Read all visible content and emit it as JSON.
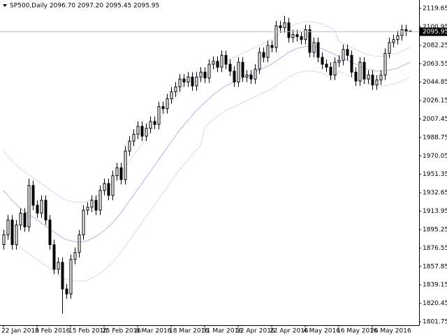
{
  "chart_data": {
    "type": "candlestick",
    "title": "SP500,Daily 2096.70 2097.20 2095.45 2095.95",
    "categories": [
      "22 Jan 2016",
      null,
      null,
      null,
      null,
      null,
      null,
      null,
      "3 Feb 2016",
      null,
      null,
      null,
      null,
      null,
      null,
      null,
      "15 Feb 2016",
      null,
      null,
      null,
      null,
      null,
      null,
      null,
      "25 Feb 2016",
      null,
      null,
      null,
      null,
      null,
      null,
      null,
      "8 Mar 2016",
      null,
      null,
      null,
      null,
      null,
      null,
      null,
      "18 Mar 2016",
      null,
      null,
      null,
      null,
      null,
      null,
      null,
      "31 Mar 2016",
      null,
      null,
      null,
      null,
      null,
      null,
      null,
      "12 Apr 2016",
      null,
      null,
      null,
      null,
      null,
      null,
      null,
      "22 Apr 2016",
      null,
      null,
      null,
      null,
      null,
      null,
      null,
      "4 May 2016",
      null,
      null,
      null,
      null,
      null,
      null,
      null,
      "16 May 2016",
      null,
      null,
      null,
      null,
      null,
      null,
      null,
      "26 May 2016",
      null,
      null,
      null,
      null,
      null,
      null,
      null,
      null,
      null
    ],
    "ohlc": {
      "open": [
        1880,
        1890,
        1905,
        1880,
        1900,
        1912,
        1898,
        1940,
        1920,
        1912,
        1925,
        1905,
        1880,
        1855,
        1862,
        1835,
        1830,
        1865,
        1872,
        1890,
        1915,
        1918,
        1925,
        1915,
        1935,
        1942,
        1930,
        1950,
        1958,
        1946,
        1975,
        1985,
        1992,
        2000,
        1990,
        1998,
        2005,
        2002,
        2020,
        2018,
        2028,
        2035,
        2040,
        2048,
        2045,
        2050,
        2041,
        2050,
        2055,
        2049,
        2063,
        2066,
        2060,
        2072,
        2063,
        2056,
        2045,
        2065,
        2050,
        2052,
        2048,
        2058,
        2075,
        2070,
        2082,
        2080,
        2102,
        2100,
        2105,
        2090,
        2093,
        2091,
        2088,
        2098,
        2075,
        2085,
        2070,
        2063,
        2060,
        2052,
        2065,
        2067,
        2078,
        2072,
        2055,
        2046,
        2065,
        2048,
        2052,
        2042,
        2047,
        2052,
        2074,
        2085,
        2088,
        2092,
        2098,
        2096.7
      ],
      "high": [
        1895,
        1910,
        1910,
        1905,
        1917,
        1917,
        1947,
        1945,
        1925,
        1930,
        1930,
        1910,
        1885,
        1867,
        1867,
        1840,
        1870,
        1877,
        1895,
        1920,
        1923,
        1930,
        1930,
        1940,
        1947,
        1947,
        1955,
        1963,
        1963,
        1980,
        1990,
        1997,
        2005,
        2005,
        2003,
        2010,
        2010,
        2025,
        2025,
        2033,
        2040,
        2045,
        2053,
        2053,
        2055,
        2055,
        2055,
        2060,
        2060,
        2068,
        2071,
        2071,
        2077,
        2077,
        2068,
        2061,
        2070,
        2070,
        2057,
        2057,
        2063,
        2080,
        2080,
        2087,
        2087,
        2107,
        2107,
        2112,
        2110,
        2098,
        2098,
        2096,
        2103,
        2103,
        2090,
        2090,
        2075,
        2068,
        2065,
        2070,
        2072,
        2083,
        2083,
        2077,
        2060,
        2070,
        2070,
        2057,
        2057,
        2052,
        2057,
        2079,
        2090,
        2093,
        2097,
        2103,
        2103,
        2097.2
      ],
      "low": [
        1875,
        1885,
        1875,
        1875,
        1895,
        1893,
        1893,
        1915,
        1907,
        1907,
        1900,
        1875,
        1850,
        1850,
        1810,
        1825,
        1825,
        1860,
        1867,
        1885,
        1910,
        1913,
        1910,
        1910,
        1930,
        1925,
        1925,
        1945,
        1941,
        1941,
        1970,
        1980,
        1987,
        1985,
        1985,
        1993,
        1997,
        1997,
        2013,
        2013,
        2023,
        2030,
        2035,
        2040,
        2040,
        2036,
        2036,
        2045,
        2044,
        2044,
        2058,
        2055,
        2055,
        2058,
        2051,
        2040,
        2040,
        2045,
        2045,
        2043,
        2043,
        2053,
        2065,
        2065,
        2075,
        2075,
        2095,
        2095,
        2085,
        2085,
        2086,
        2083,
        2083,
        2070,
        2070,
        2065,
        2058,
        2055,
        2047,
        2047,
        2060,
        2062,
        2067,
        2050,
        2041,
        2041,
        2043,
        2043,
        2037,
        2037,
        2042,
        2047,
        2069,
        2080,
        2083,
        2087,
        2091.7,
        2095.45
      ],
      "close": [
        1890,
        1905,
        1880,
        1900,
        1912,
        1898,
        1940,
        1920,
        1912,
        1925,
        1905,
        1880,
        1855,
        1862,
        1835,
        1830,
        1865,
        1872,
        1890,
        1915,
        1918,
        1925,
        1915,
        1935,
        1942,
        1930,
        1950,
        1958,
        1946,
        1975,
        1985,
        1992,
        2000,
        1990,
        1998,
        2005,
        2002,
        2020,
        2018,
        2028,
        2035,
        2040,
        2048,
        2045,
        2050,
        2041,
        2050,
        2055,
        2049,
        2063,
        2066,
        2060,
        2072,
        2063,
        2056,
        2045,
        2065,
        2050,
        2052,
        2048,
        2058,
        2075,
        2070,
        2082,
        2080,
        2102,
        2100,
        2105,
        2090,
        2093,
        2091,
        2088,
        2098,
        2075,
        2085,
        2070,
        2063,
        2060,
        2052,
        2065,
        2067,
        2078,
        2072,
        2055,
        2046,
        2065,
        2048,
        2052,
        2042,
        2047,
        2052,
        2074,
        2085,
        2088,
        2092,
        2098,
        2096.7,
        2095.95
      ]
    },
    "series": [
      {
        "color": "#d8d8f0",
        "values": [
          1975,
          1970,
          1965,
          1961,
          1957,
          1954,
          1951,
          1948,
          1945,
          1942,
          1939,
          1936,
          1933,
          1930,
          1927,
          1925,
          1924,
          1923,
          1923,
          1923,
          1924,
          1926,
          1928,
          1931,
          1934,
          1938,
          1942,
          1947,
          1952,
          1958,
          1964,
          1970,
          1976,
          1982,
          1988,
          1994,
          2000,
          2006,
          2012,
          2018,
          2024,
          2030,
          2036,
          2041,
          2046,
          2051,
          2056,
          2060,
          2049,
          2053,
          2057,
          2060,
          2063,
          2066,
          2068,
          2070,
          2072,
          2074,
          2076,
          2078,
          2080,
          2082,
          2084,
          2086,
          2088,
          2091,
          2094,
          2097,
          2100,
          2102,
          2104,
          2105,
          2106,
          2106,
          2106,
          2105,
          2104,
          2102,
          2100,
          2098,
          2086,
          2084,
          2082,
          2080,
          2078,
          2076,
          2074,
          2073,
          2072,
          2071,
          2071,
          2071,
          2072,
          2073,
          2074,
          2076,
          2078,
          2080
        ]
      },
      {
        "color": "#b4b4e8",
        "values": [
          1935,
          1930,
          1925,
          1921,
          1917,
          1914,
          1911,
          1908,
          1905,
          1902,
          1899,
          1896,
          1893,
          1890,
          1887,
          1885,
          1884,
          1883,
          1883,
          1883,
          1884,
          1886,
          1888,
          1891,
          1894,
          1898,
          1902,
          1907,
          1912,
          1918,
          1924,
          1930,
          1936,
          1942,
          1948,
          1954,
          1960,
          1966,
          1972,
          1978,
          1984,
          1990,
          1996,
          2001,
          2006,
          2011,
          2016,
          2020,
          2024,
          2028,
          2032,
          2035,
          2038,
          2041,
          2043,
          2045,
          2047,
          2049,
          2051,
          2053,
          2055,
          2057,
          2059,
          2061,
          2063,
          2066,
          2069,
          2072,
          2075,
          2077,
          2079,
          2080,
          2081,
          2081,
          2081,
          2080,
          2079,
          2077,
          2075,
          2073,
          2071,
          2069,
          2067,
          2065,
          2063,
          2061,
          2059,
          2058,
          2057,
          2056,
          2056,
          2056,
          2057,
          2058,
          2059,
          2061,
          2063,
          2065
        ]
      },
      {
        "color": "#d8d8f0",
        "values": [
          1895,
          1890,
          1885,
          1881,
          1877,
          1874,
          1871,
          1868,
          1865,
          1862,
          1859,
          1856,
          1853,
          1850,
          1847,
          1845,
          1844,
          1843,
          1843,
          1843,
          1844,
          1846,
          1848,
          1851,
          1854,
          1858,
          1862,
          1867,
          1872,
          1878,
          1884,
          1890,
          1896,
          1902,
          1908,
          1914,
          1920,
          1926,
          1932,
          1938,
          1944,
          1950,
          1956,
          1961,
          1966,
          1971,
          1976,
          1980,
          1999,
          2003,
          2007,
          2010,
          2013,
          2016,
          2018,
          2020,
          2022,
          2024,
          2026,
          2028,
          2030,
          2032,
          2034,
          2036,
          2038,
          2041,
          2044,
          2047,
          2050,
          2052,
          2054,
          2055,
          2056,
          2056,
          2056,
          2055,
          2054,
          2052,
          2050,
          2048,
          2056,
          2054,
          2052,
          2050,
          2048,
          2046,
          2044,
          2043,
          2042,
          2041,
          2041,
          2041,
          2042,
          2043,
          2044,
          2046,
          2048,
          2050
        ]
      }
    ],
    "last_price": 2095.95,
    "ylim": [
      1798.25,
      2128.15
    ],
    "yticks": [
      1801.75,
      1820.45,
      1839.15,
      1857.85,
      1876.55,
      1895.25,
      1913.95,
      1932.65,
      1951.35,
      1970.05,
      1988.75,
      2007.45,
      2026.15,
      2044.85,
      2063.55,
      2082.25,
      2100.95,
      2119.65
    ],
    "grid": false
  }
}
